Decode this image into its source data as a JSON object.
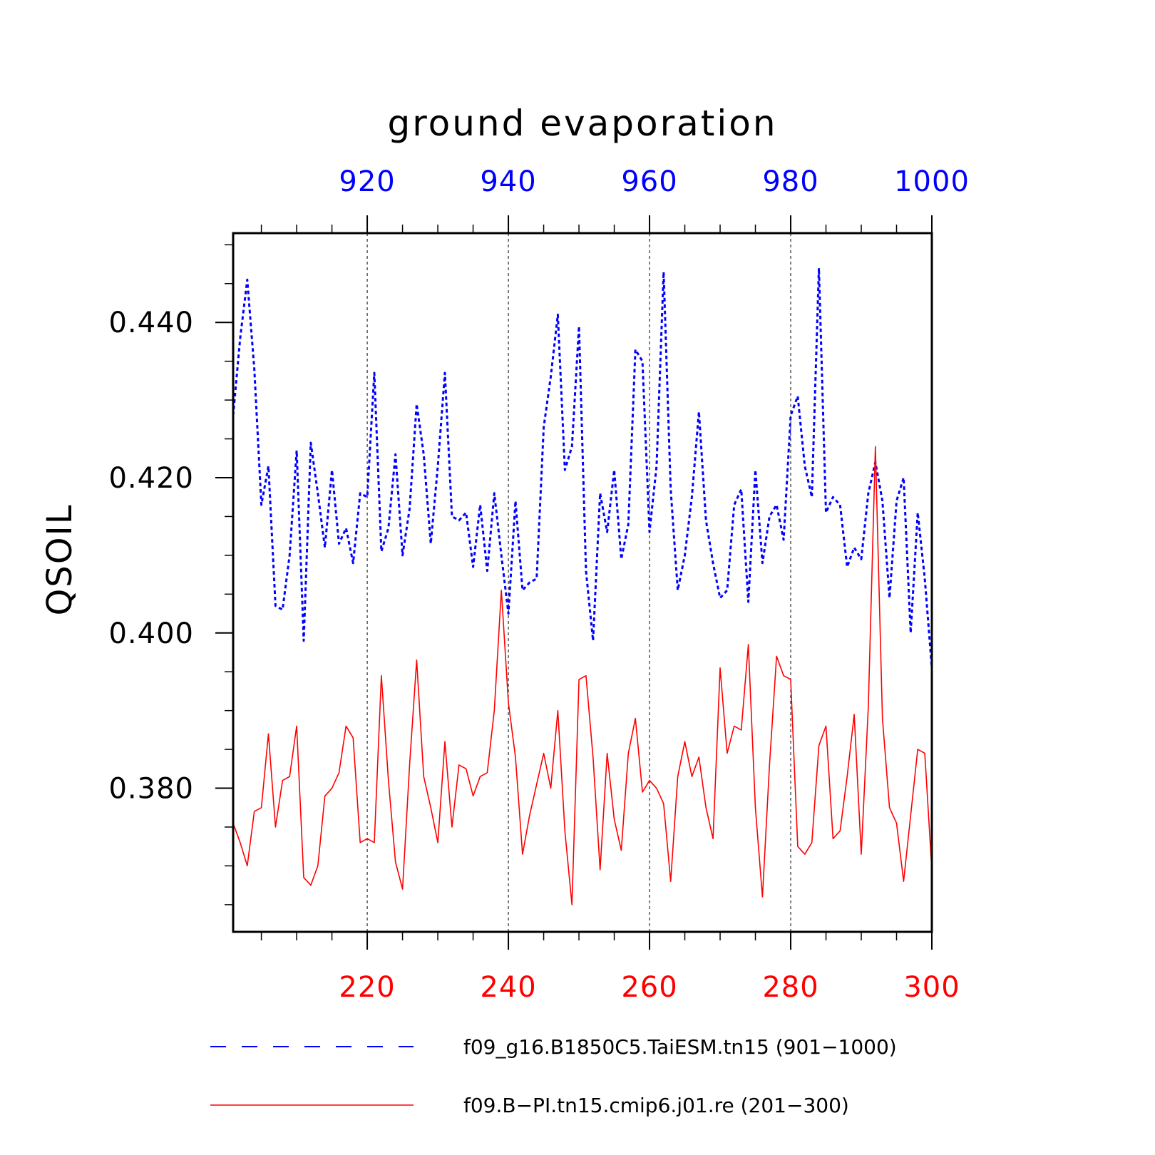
{
  "chart_data": {
    "type": "line",
    "title": "ground evaporation",
    "ylabel": "QSOIL",
    "ylim": [
      0.3615,
      0.4515
    ],
    "y_ticks": [
      0.38,
      0.4,
      0.42,
      0.44
    ],
    "y_tick_labels": [
      "0.380",
      "0.400",
      "0.420",
      "0.440"
    ],
    "bottom_axis": {
      "color": "#ff0000",
      "range": [
        201,
        300
      ],
      "ticks": [
        220,
        240,
        260,
        280,
        300
      ],
      "tick_labels": [
        "220",
        "240",
        "260",
        "280",
        "300"
      ]
    },
    "top_axis": {
      "color": "#0000ff",
      "range": [
        901,
        1000
      ],
      "ticks": [
        920,
        940,
        960,
        980,
        1000
      ],
      "tick_labels": [
        "920",
        "940",
        "960",
        "980",
        "1000"
      ]
    },
    "grid": "vertical dashed at major ticks",
    "legend_placement": "bottom",
    "series": [
      {
        "name": "f09_g16.B1850C5.TaiESM.tn15 (901−1000)",
        "color": "#0000ff",
        "style": "dashed",
        "axis": "top",
        "x_start": 901,
        "values": [
          0.428,
          0.438,
          0.4455,
          0.434,
          0.4165,
          0.4215,
          0.4035,
          0.403,
          0.41,
          0.4235,
          0.399,
          0.4245,
          0.418,
          0.411,
          0.421,
          0.4115,
          0.4135,
          0.409,
          0.418,
          0.4175,
          0.4335,
          0.4105,
          0.4135,
          0.423,
          0.41,
          0.416,
          0.4295,
          0.423,
          0.4115,
          0.4215,
          0.4335,
          0.415,
          0.4145,
          0.4155,
          0.4085,
          0.4165,
          0.408,
          0.418,
          0.41,
          0.4025,
          0.417,
          0.4055,
          0.4065,
          0.407,
          0.4265,
          0.433,
          0.441,
          0.421,
          0.424,
          0.4395,
          0.408,
          0.399,
          0.418,
          0.413,
          0.421,
          0.4095,
          0.414,
          0.4365,
          0.435,
          0.413,
          0.4215,
          0.4465,
          0.4185,
          0.4055,
          0.41,
          0.4175,
          0.4285,
          0.4145,
          0.409,
          0.4045,
          0.4055,
          0.4165,
          0.4185,
          0.404,
          0.421,
          0.409,
          0.415,
          0.4165,
          0.412,
          0.428,
          0.4305,
          0.4215,
          0.4175,
          0.447,
          0.4155,
          0.4175,
          0.4165,
          0.4085,
          0.411,
          0.4095,
          0.418,
          0.422,
          0.417,
          0.4045,
          0.417,
          0.42,
          0.4,
          0.4155,
          0.407,
          0.3955
        ]
      },
      {
        "name": "f09.B−PI.tn15.cmip6.j01.re (201−300)",
        "color": "#ff0000",
        "style": "solid",
        "axis": "bottom",
        "x_start": 201,
        "values": [
          0.3755,
          0.373,
          0.37,
          0.377,
          0.3775,
          0.387,
          0.375,
          0.381,
          0.3815,
          0.388,
          0.3685,
          0.3675,
          0.37,
          0.379,
          0.38,
          0.382,
          0.388,
          0.3865,
          0.373,
          0.3735,
          0.373,
          0.3945,
          0.381,
          0.3705,
          0.367,
          0.383,
          0.3965,
          0.3815,
          0.3775,
          0.373,
          0.386,
          0.375,
          0.383,
          0.3825,
          0.379,
          0.3815,
          0.382,
          0.39,
          0.4055,
          0.391,
          0.384,
          0.3715,
          0.3765,
          0.3805,
          0.3845,
          0.38,
          0.39,
          0.3745,
          0.365,
          0.394,
          0.3945,
          0.384,
          0.3695,
          0.3845,
          0.376,
          0.372,
          0.3845,
          0.389,
          0.3795,
          0.381,
          0.38,
          0.378,
          0.368,
          0.3815,
          0.386,
          0.3815,
          0.384,
          0.3775,
          0.3735,
          0.3955,
          0.3845,
          0.388,
          0.3875,
          0.3985,
          0.3775,
          0.366,
          0.383,
          0.397,
          0.3945,
          0.394,
          0.3725,
          0.3715,
          0.373,
          0.3855,
          0.388,
          0.3735,
          0.3745,
          0.3815,
          0.3895,
          0.3715,
          0.3905,
          0.424,
          0.389,
          0.3775,
          0.3755,
          0.368,
          0.3765,
          0.385,
          0.3845,
          0.3695
        ]
      }
    ]
  }
}
